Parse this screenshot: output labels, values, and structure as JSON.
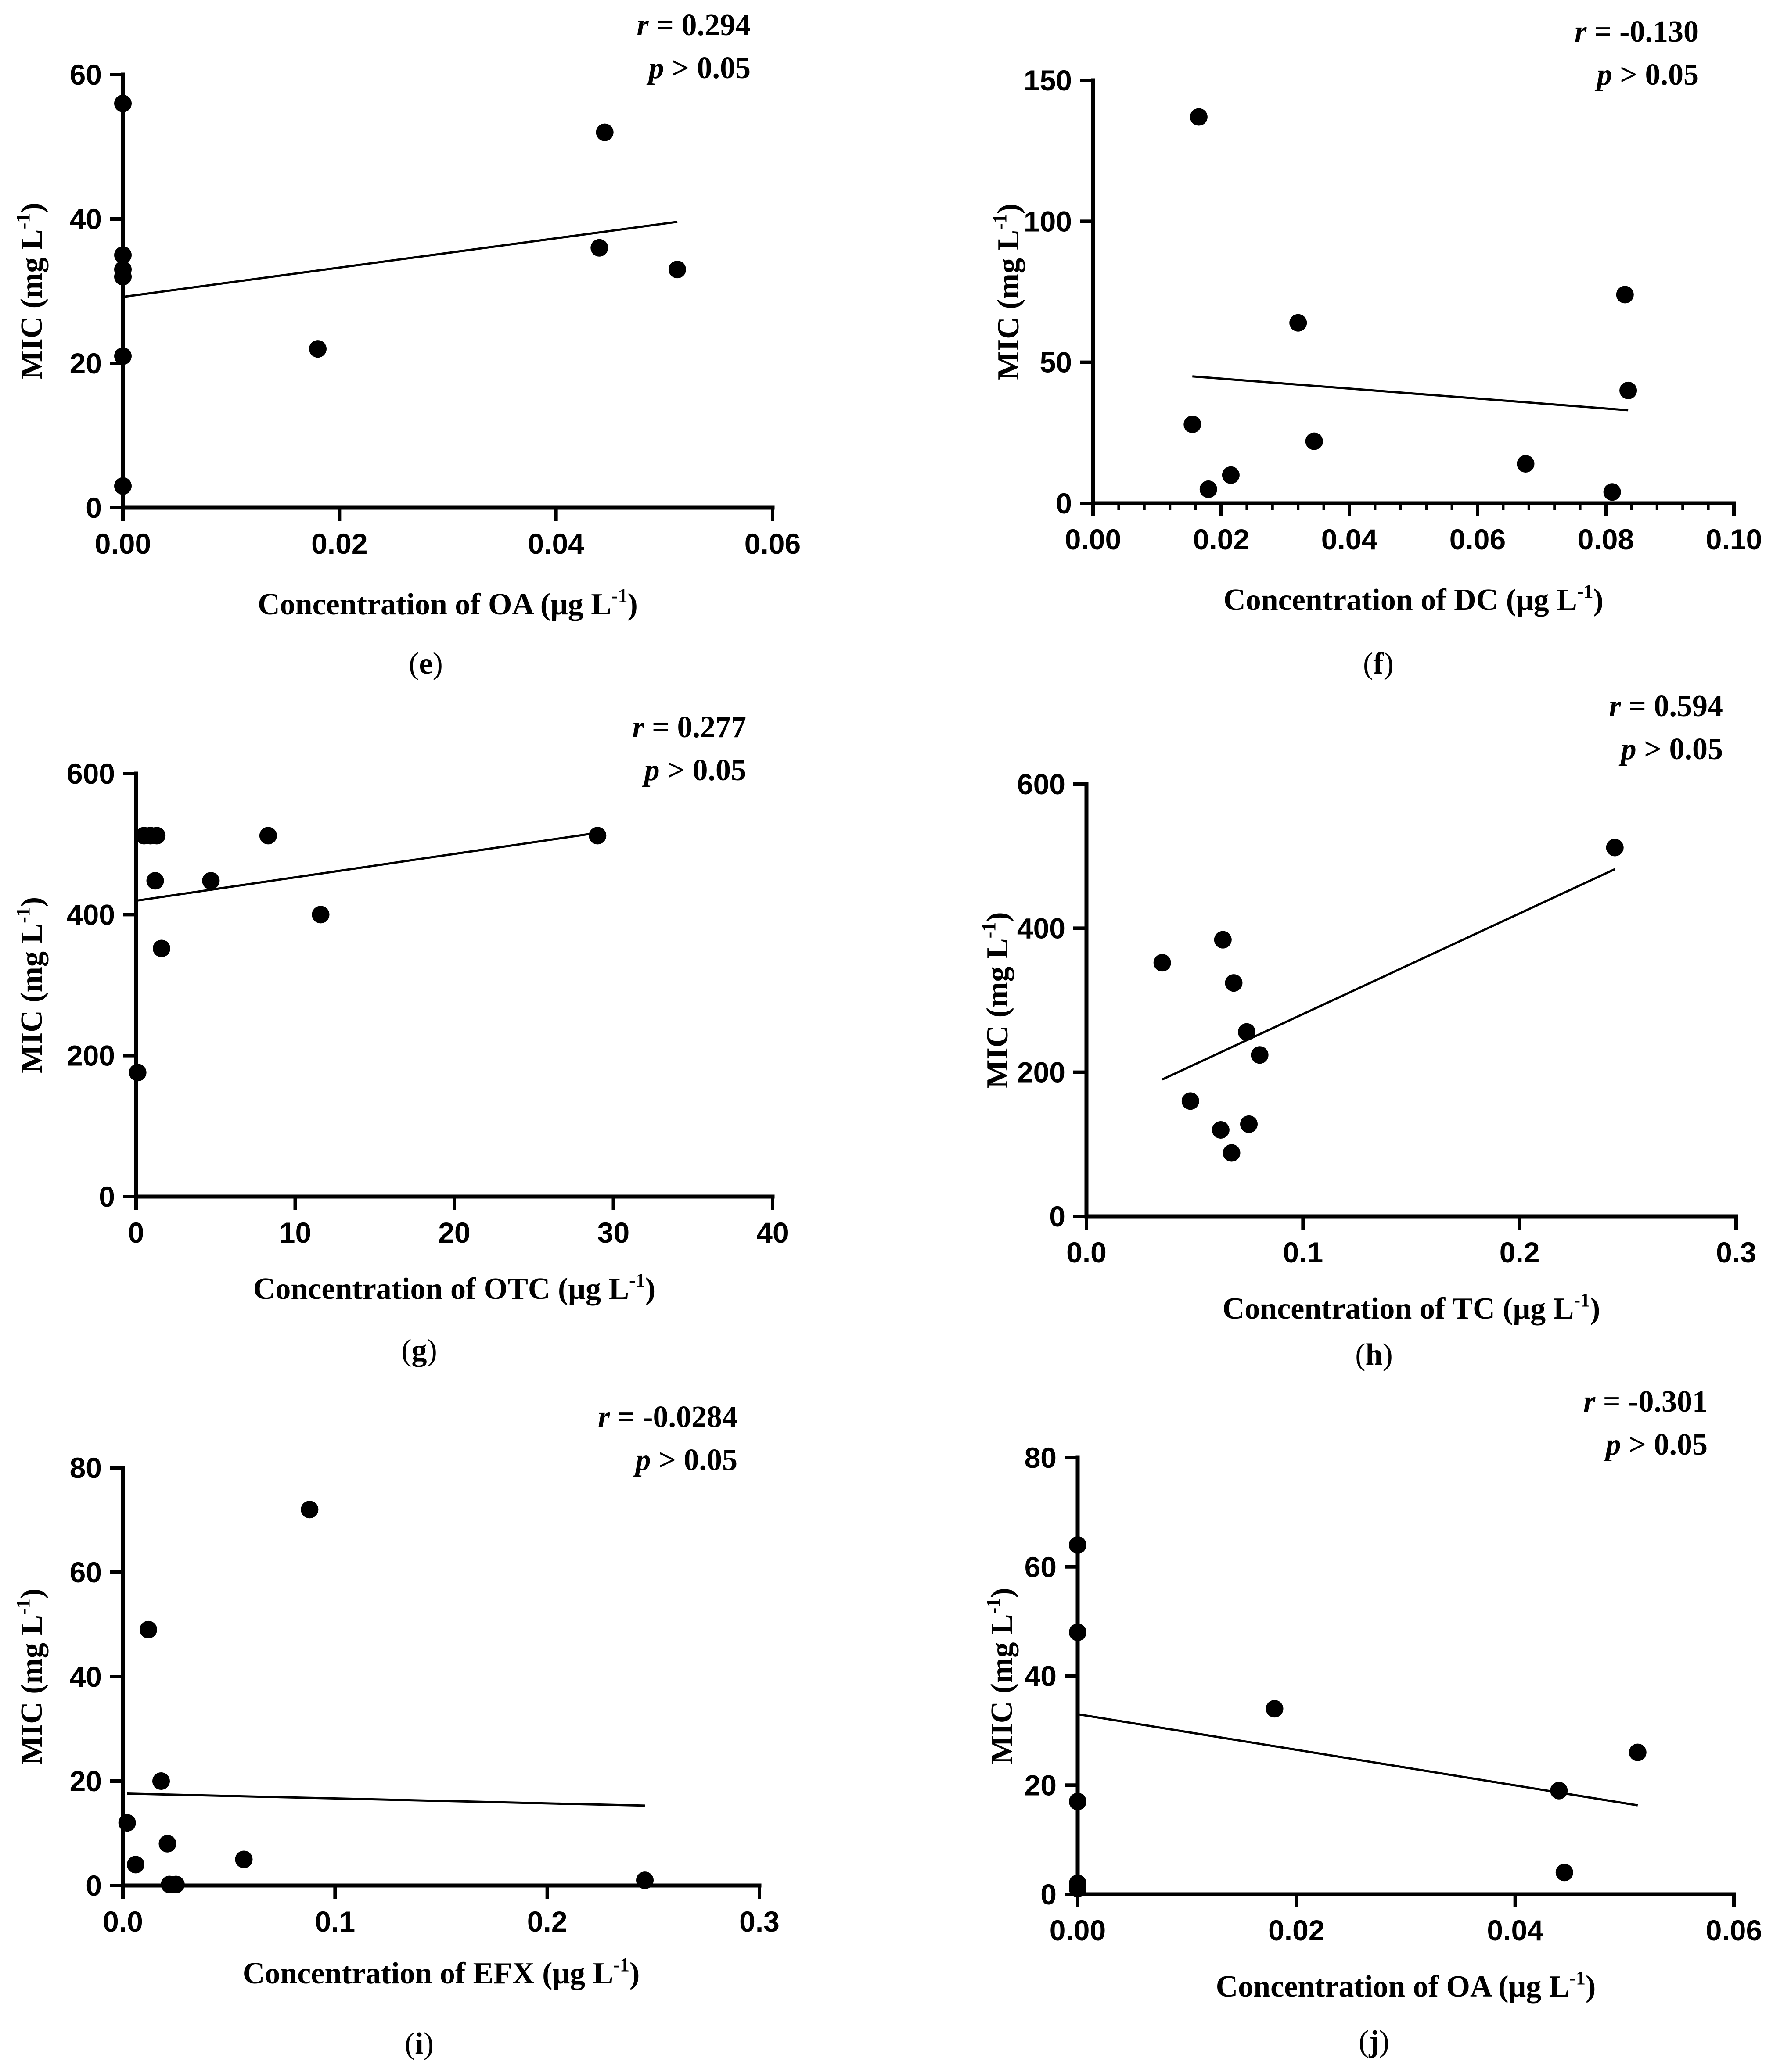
{
  "chart_data": [
    {
      "panel": "e",
      "type": "scatter",
      "xlabel_prefix": "Concentration of OA (μg L",
      "xlabel_sup": "-1",
      "xlabel_suffix": ")",
      "ylabel_prefix": "MIC (mg L",
      "ylabel_sup": "-1",
      "ylabel_suffix": ")",
      "xlim": [
        0,
        0.06
      ],
      "ylim": [
        0,
        60
      ],
      "xticks": [
        0,
        0.02,
        0.04,
        0.06
      ],
      "xtick_labels": [
        "0.00",
        "0.02",
        "0.04",
        "0.06"
      ],
      "yticks": [
        0,
        20,
        40,
        60
      ],
      "ytick_labels": [
        "0",
        "20",
        "40",
        "60"
      ],
      "x": [
        0,
        0,
        0,
        0,
        0,
        0,
        0.018,
        0.044,
        0.0445,
        0.0512
      ],
      "y": [
        56,
        35,
        33,
        32,
        21,
        3,
        22,
        36,
        52,
        33
      ],
      "fit": {
        "x": [
          0,
          0.0512
        ],
        "y": [
          29.2,
          39.6
        ]
      },
      "r_label": "r",
      "r_value": " = 0.294",
      "p_label": "p",
      "p_value": " > 0.05"
    },
    {
      "panel": "f",
      "type": "scatter",
      "xlabel_prefix": "Concentration of DC (μg L",
      "xlabel_sup": "-1",
      "xlabel_suffix": ")",
      "ylabel_prefix": "MIC (mg L",
      "ylabel_sup": "-1",
      "ylabel_suffix": ")",
      "xlim": [
        0,
        0.1
      ],
      "ylim": [
        0,
        150
      ],
      "xticks": [
        0,
        0.02,
        0.04,
        0.06,
        0.08,
        0.1
      ],
      "xtick_labels": [
        "0.00",
        "0.02",
        "0.04",
        "0.06",
        "0.08",
        "0.10"
      ],
      "x_minor": 0.004,
      "yticks": [
        0,
        50,
        100,
        150
      ],
      "ytick_labels": [
        "0",
        "50",
        "100",
        "150"
      ],
      "x": [
        0.0155,
        0.0165,
        0.018,
        0.0215,
        0.032,
        0.0345,
        0.0675,
        0.081,
        0.083,
        0.0835
      ],
      "y": [
        28,
        137,
        5,
        10,
        64,
        22,
        14,
        4,
        74,
        40
      ],
      "fit": {
        "x": [
          0.0155,
          0.0835
        ],
        "y": [
          45,
          33
        ]
      },
      "r_label": "r",
      "r_value": " = -0.130",
      "p_label": "p",
      "p_value": " > 0.05"
    },
    {
      "panel": "g",
      "type": "scatter",
      "xlabel_prefix": "Concentration of OTC (μg L",
      "xlabel_sup": "-1",
      "xlabel_suffix": ")",
      "ylabel_prefix": "MIC (mg L",
      "ylabel_sup": "-1",
      "ylabel_suffix": ")",
      "xlim": [
        0,
        40
      ],
      "ylim": [
        0,
        600
      ],
      "xticks": [
        0,
        10,
        20,
        30,
        40
      ],
      "xtick_labels": [
        "0",
        "10",
        "20",
        "30",
        "40"
      ],
      "yticks": [
        0,
        200,
        400,
        600
      ],
      "ytick_labels": [
        "0",
        "200",
        "400",
        "600"
      ],
      "x": [
        0.1,
        0.5,
        0.9,
        1.3,
        1.2,
        1.6,
        4.7,
        8.3,
        11.6,
        29.0
      ],
      "y": [
        176,
        512,
        512,
        512,
        448,
        352,
        448,
        512,
        400,
        512
      ],
      "fit": {
        "x": [
          0.1,
          29.0
        ],
        "y": [
          420,
          516
        ]
      },
      "r_label": "r",
      "r_value": " = 0.277",
      "p_label": "p",
      "p_value": " > 0.05"
    },
    {
      "panel": "h",
      "type": "scatter",
      "xlabel_prefix": "Concentration of TC (μg L",
      "xlabel_sup": "-1",
      "xlabel_suffix": ")",
      "ylabel_prefix": "MIC (mg L",
      "ylabel_sup": "-1",
      "ylabel_suffix": ")",
      "xlim": [
        0,
        0.3
      ],
      "ylim": [
        0,
        600
      ],
      "xticks": [
        0,
        0.1,
        0.2,
        0.3
      ],
      "xtick_labels": [
        "0.0",
        "0.1",
        "0.2",
        "0.3"
      ],
      "yticks": [
        0,
        200,
        400,
        600
      ],
      "ytick_labels": [
        "0",
        "200",
        "400",
        "600"
      ],
      "x": [
        0.035,
        0.048,
        0.062,
        0.063,
        0.067,
        0.068,
        0.074,
        0.075,
        0.08,
        0.244
      ],
      "y": [
        352,
        160,
        120,
        384,
        88,
        324,
        256,
        128,
        224,
        512
      ],
      "fit": {
        "x": [
          0.035,
          0.244
        ],
        "y": [
          190,
          482
        ]
      },
      "r_label": "r",
      "r_value": " = 0.594",
      "p_label": "p",
      "p_value": " > 0.05"
    },
    {
      "panel": "i",
      "type": "scatter",
      "xlabel_prefix": "Concentration of EFX (μg L",
      "xlabel_sup": "-1",
      "xlabel_suffix": ")",
      "ylabel_prefix": "MIC (mg L",
      "ylabel_sup": "-1",
      "ylabel_suffix": ")",
      "xlim": [
        0,
        0.3
      ],
      "ylim": [
        0,
        80
      ],
      "xticks": [
        0,
        0.1,
        0.2,
        0.3
      ],
      "xtick_labels": [
        "0.0",
        "0.1",
        "0.2",
        "0.3"
      ],
      "yticks": [
        0,
        20,
        40,
        60,
        80
      ],
      "ytick_labels": [
        "0",
        "20",
        "40",
        "60",
        "80"
      ],
      "x": [
        0.002,
        0.006,
        0.012,
        0.018,
        0.021,
        0.022,
        0.025,
        0.057,
        0.088,
        0.246
      ],
      "y": [
        12,
        4,
        49,
        20,
        8,
        0.2,
        0.2,
        5,
        72,
        1
      ],
      "fit": {
        "x": [
          0.002,
          0.246
        ],
        "y": [
          17.6,
          15.3
        ]
      },
      "r_label": "r",
      "r_value": " = -0.0284",
      "p_label": "p",
      "p_value": " > 0.05"
    },
    {
      "panel": "j",
      "type": "scatter",
      "xlabel_prefix": "Concentration of OA (μg L",
      "xlabel_sup": "-1",
      "xlabel_suffix": ")",
      "ylabel_prefix": "MIC (mg L",
      "ylabel_sup": "-1",
      "ylabel_suffix": ")",
      "xlim": [
        0,
        0.06
      ],
      "ylim": [
        0,
        80
      ],
      "xticks": [
        0,
        0.02,
        0.04,
        0.06
      ],
      "xtick_labels": [
        "0.00",
        "0.02",
        "0.04",
        "0.06"
      ],
      "yticks": [
        0,
        20,
        40,
        60,
        80
      ],
      "ytick_labels": [
        "0",
        "20",
        "40",
        "60",
        "80"
      ],
      "x": [
        0,
        0,
        0,
        0,
        0,
        0.018,
        0.044,
        0.0445,
        0.0512
      ],
      "y": [
        64,
        48,
        17,
        2,
        1,
        34,
        19,
        4,
        26
      ],
      "fit": {
        "x": [
          0,
          0.0512
        ],
        "y": [
          33,
          16.3
        ]
      },
      "r_label": "r",
      "r_value": " = -0.301",
      "p_label": "p",
      "p_value": " > 0.05"
    }
  ]
}
